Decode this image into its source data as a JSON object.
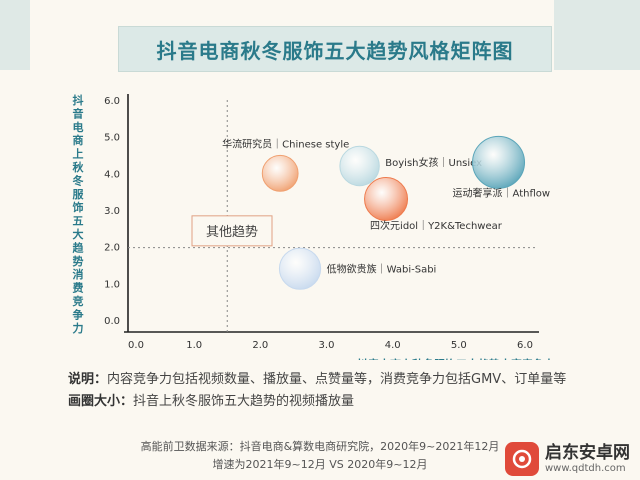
{
  "page": {
    "notes": [
      {
        "label": "说明：",
        "text": "内容竞争力包括视频数量、播放量、点赞量等，消费竞争力包括GMV、订单量等"
      },
      {
        "label": "画圈大小：",
        "text": "抖音上秋冬服饰五大趋势的视频播放量"
      }
    ],
    "source_line1": "高能前卫数据来源：抖音电商&算数电商研究院，2020年9~2021年12月",
    "source_line2": "增速为2021年9~12月 VS 2020年9~12月",
    "watermark": {
      "name": "启东安卓网",
      "url": "www.qdtdh.com"
    }
  },
  "chart_data": {
    "type": "scatter",
    "title": "抖音电商秋冬服饰五大趋势风格矩阵图",
    "xlabel": "抖音电商上秋冬服饰五大趋势内容竞争力",
    "ylabel": "抖音电商上秋冬服饰五大趋势消费竞争力",
    "xlim": [
      0,
      6
    ],
    "ylim": [
      0,
      6
    ],
    "xticks": [
      "0.0",
      "1.0",
      "2.0",
      "3.0",
      "4.0",
      "5.0",
      "6.0"
    ],
    "yticks": [
      "0.0",
      "1.0",
      "2.0",
      "3.0",
      "4.0",
      "5.0",
      "6.0"
    ],
    "reference_lines": {
      "x": 1.5,
      "y": 2.0
    },
    "quadrant_label": "其他趋势",
    "points": [
      {
        "label": "华流研究员｜Chinese style",
        "x": 2.3,
        "y": 4.0,
        "size": 0.55,
        "color": "#f0a070"
      },
      {
        "label": "Boyish女孩｜Unsiex",
        "x": 3.5,
        "y": 4.2,
        "size": 0.65,
        "color": "#b9d8e0"
      },
      {
        "label": "运动奢享派｜Athflow",
        "x": 5.6,
        "y": 4.3,
        "size": 1.0,
        "color": "#5aa5b9"
      },
      {
        "label": "四次元idol｜Y2K&Techwear",
        "x": 3.9,
        "y": 3.3,
        "size": 0.75,
        "color": "#ee7a4c"
      },
      {
        "label": "低物欲贵族｜Wabi-Sabi",
        "x": 2.6,
        "y": 1.4,
        "size": 0.7,
        "color": "#c7d9ee"
      }
    ]
  }
}
